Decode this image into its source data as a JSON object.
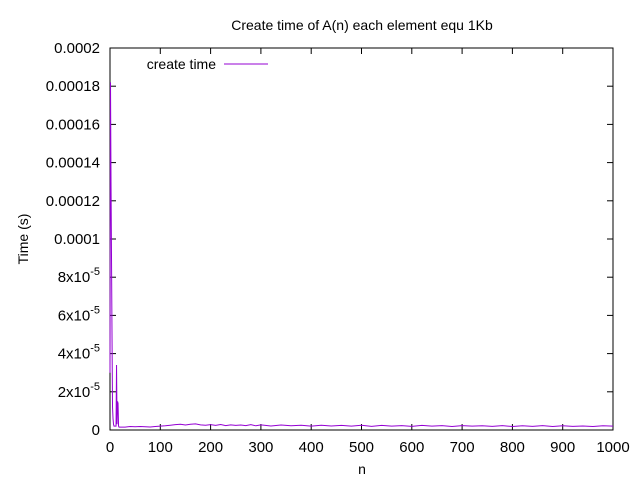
{
  "chart_data": {
    "type": "line",
    "title": "Create time of A(n) each element equ 1Kb",
    "xlabel": "n",
    "ylabel": "Time (s)",
    "xlim": [
      0,
      1000
    ],
    "ylim": [
      0,
      0.0002
    ],
    "grid": false,
    "legend_position": "top-left",
    "x_ticks": [
      {
        "value": 0,
        "label": "0"
      },
      {
        "value": 100,
        "label": "100"
      },
      {
        "value": 200,
        "label": "200"
      },
      {
        "value": 300,
        "label": "300"
      },
      {
        "value": 400,
        "label": "400"
      },
      {
        "value": 500,
        "label": "500"
      },
      {
        "value": 600,
        "label": "600"
      },
      {
        "value": 700,
        "label": "700"
      },
      {
        "value": 800,
        "label": "800"
      },
      {
        "value": 900,
        "label": "900"
      },
      {
        "value": 1000,
        "label": "1000"
      }
    ],
    "y_ticks": [
      {
        "value": 0,
        "label": "0"
      },
      {
        "value": 2e-05,
        "label": "2x10",
        "exp": "-5"
      },
      {
        "value": 4e-05,
        "label": "4x10",
        "exp": "-5"
      },
      {
        "value": 6e-05,
        "label": "6x10",
        "exp": "-5"
      },
      {
        "value": 8e-05,
        "label": "8x10",
        "exp": "-5"
      },
      {
        "value": 0.0001,
        "label": "0.0001"
      },
      {
        "value": 0.00012,
        "label": "0.00012"
      },
      {
        "value": 0.00014,
        "label": "0.00014"
      },
      {
        "value": 0.00016,
        "label": "0.00016"
      },
      {
        "value": 0.00018,
        "label": "0.00018"
      },
      {
        "value": 0.0002,
        "label": "0.0002"
      }
    ],
    "series": [
      {
        "name": "create time",
        "color": "#9400d3",
        "x": [
          0,
          1,
          2,
          3,
          4,
          5,
          6,
          7,
          8,
          9,
          10,
          11,
          12,
          13,
          14,
          15,
          16,
          17,
          18,
          19,
          20,
          25,
          30,
          40,
          50,
          60,
          70,
          80,
          90,
          100,
          110,
          120,
          130,
          140,
          150,
          160,
          170,
          180,
          190,
          200,
          210,
          220,
          230,
          240,
          250,
          260,
          270,
          280,
          290,
          300,
          320,
          340,
          360,
          380,
          400,
          420,
          440,
          460,
          480,
          500,
          520,
          540,
          560,
          580,
          600,
          620,
          640,
          660,
          680,
          700,
          720,
          740,
          760,
          780,
          800,
          820,
          840,
          860,
          880,
          900,
          920,
          940,
          960,
          980,
          1000
        ],
        "y": [
          3e-05,
          0.000182,
          0.00013,
          9e-05,
          5e-05,
          1.2e-05,
          6e-06,
          3e-06,
          2e-06,
          2e-06,
          2e-06,
          2e-06,
          2e-06,
          3.4e-05,
          3e-06,
          1.5e-05,
          1.4e-05,
          2e-06,
          1.5e-06,
          1.5e-06,
          1.5e-06,
          1.5e-06,
          1.5e-06,
          1.8e-06,
          1.7e-06,
          1.8e-06,
          1.7e-06,
          1.6e-06,
          1.8e-06,
          2e-06,
          2.2e-06,
          2.5e-06,
          2.8e-06,
          3e-06,
          2.6e-06,
          3e-06,
          3.2e-06,
          2.7e-06,
          2.5e-06,
          2.8e-06,
          2.4e-06,
          2.9e-06,
          2.3e-06,
          2.7e-06,
          2.4e-06,
          2.6e-06,
          2.3e-06,
          2.8e-06,
          2.2e-06,
          2.7e-06,
          2.1e-06,
          2.6e-06,
          2.2e-06,
          2.5e-06,
          2e-06,
          2.5e-06,
          2.1e-06,
          2.4e-06,
          2e-06,
          2.5e-06,
          1.9e-06,
          2.4e-06,
          2e-06,
          2.3e-06,
          1.9e-06,
          2.4e-06,
          2e-06,
          2.3e-06,
          1.8e-06,
          2.3e-06,
          2e-06,
          2.2e-06,
          1.9e-06,
          2.3e-06,
          1.8e-06,
          2.2e-06,
          1.9e-06,
          2.3e-06,
          1.8e-06,
          2.2e-06,
          1.9e-06,
          2.1e-06,
          1.8e-06,
          2.2e-06,
          2e-06
        ]
      }
    ]
  }
}
